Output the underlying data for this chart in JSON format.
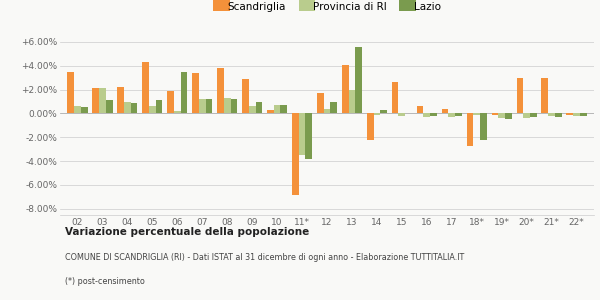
{
  "categories": [
    "02",
    "03",
    "04",
    "05",
    "06",
    "07",
    "08",
    "09",
    "10",
    "11*",
    "12",
    "13",
    "14",
    "15",
    "16",
    "17",
    "18*",
    "19*",
    "20*",
    "21*",
    "22*"
  ],
  "scandriglia": [
    3.5,
    2.1,
    2.2,
    4.3,
    1.9,
    3.4,
    3.8,
    2.9,
    0.3,
    -6.8,
    1.7,
    4.1,
    -2.2,
    2.6,
    0.6,
    0.4,
    -2.7,
    -0.1,
    3.0,
    3.0,
    -0.1
  ],
  "provincia_ri": [
    0.6,
    2.1,
    1.0,
    0.6,
    0.2,
    1.2,
    1.3,
    0.6,
    0.7,
    -3.5,
    0.4,
    2.0,
    -0.1,
    -0.2,
    -0.3,
    -0.3,
    -0.1,
    -0.4,
    -0.4,
    -0.2,
    -0.2
  ],
  "lazio": [
    0.5,
    1.1,
    0.9,
    1.1,
    3.5,
    1.2,
    1.2,
    1.0,
    0.7,
    -3.8,
    1.0,
    5.6,
    0.3,
    0.05,
    -0.2,
    -0.2,
    -2.2,
    -0.5,
    -0.3,
    -0.3,
    -0.2
  ],
  "scandriglia_color": "#f4913a",
  "provincia_color": "#b9cc8d",
  "lazio_color": "#7a9b4e",
  "background_color": "#f9f9f7",
  "grid_color": "#cccccc",
  "ylim": [
    -8.5,
    7.0
  ],
  "yticks": [
    -8.0,
    -6.0,
    -4.0,
    -2.0,
    0.0,
    2.0,
    4.0,
    6.0
  ],
  "ytick_labels": [
    "-8.00%",
    "-6.00%",
    "-4.00%",
    "-2.00%",
    "0.00%",
    "+2.00%",
    "+4.00%",
    "+6.00%"
  ],
  "title": "Variazione percentuale della popolazione",
  "subtitle": "COMUNE DI SCANDRIGLIA (RI) - Dati ISTAT al 31 dicembre di ogni anno - Elaborazione TUTTITALIA.IT",
  "footnote": "(*) post-censimento",
  "legend_labels": [
    "Scandriglia",
    "Provincia di RI",
    "Lazio"
  ],
  "bar_width": 0.27
}
